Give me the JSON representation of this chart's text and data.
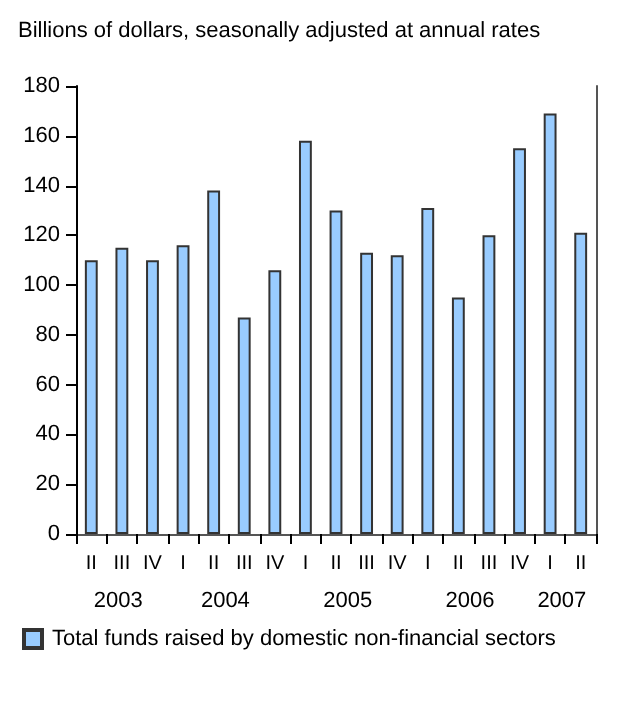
{
  "chart_data": {
    "type": "bar",
    "title": "Billions of dollars, seasonally adjusted at annual rates",
    "categories": [
      "II",
      "III",
      "IV",
      "I",
      "II",
      "III",
      "IV",
      "I",
      "II",
      "III",
      "IV",
      "I",
      "II",
      "III",
      "IV",
      "I",
      "II"
    ],
    "series": [
      {
        "name": "Total funds raised by domestic non-financial sectors",
        "color": "#99ccff",
        "values": [
          110,
          115,
          110,
          116,
          138,
          87,
          106,
          158,
          130,
          113,
          112,
          131,
          95,
          120,
          155,
          169,
          121
        ]
      }
    ],
    "annotations": [
      "2003",
      "2004",
      "2005",
      "2006",
      "2007"
    ],
    "ylim": [
      0,
      180
    ],
    "yticks": [
      0,
      20,
      40,
      60,
      80,
      100,
      120,
      140,
      160,
      180
    ],
    "grid": false,
    "legend": "bottom"
  }
}
